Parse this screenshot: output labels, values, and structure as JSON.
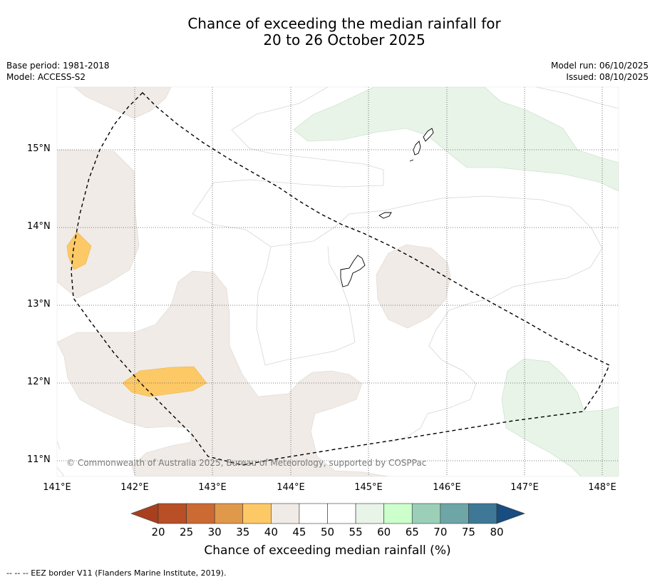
{
  "title": {
    "line1": "Chance of exceeding the median rainfall for",
    "line2": "20 to 26 October 2025"
  },
  "meta": {
    "base_period": "Base period: 1981-2018",
    "model": "Model: ACCESS-S2",
    "model_run": "Model run: 06/10/2025",
    "issued": "Issued: 08/10/2025"
  },
  "map": {
    "lat_ticks": [
      "15°N",
      "14°N",
      "13°N",
      "12°N",
      "11°N"
    ],
    "lon_ticks": [
      "141°E",
      "142°E",
      "143°E",
      "144°E",
      "145°E",
      "146°E",
      "147°E",
      "148°E"
    ],
    "copyright": "© Commonwealth of Australia 2025, Bureau of Meteorology, supported by COSPPac"
  },
  "colorbar": {
    "labels": [
      "20",
      "25",
      "30",
      "35",
      "40",
      "45",
      "50",
      "55",
      "60",
      "65",
      "70",
      "75",
      "80"
    ],
    "colors": [
      "#a8401f",
      "#b84f27",
      "#cc6a34",
      "#e0994a",
      "#fdc966",
      "#f0ebe6",
      "#ffffff",
      "#ffffff",
      "#e8f4e8",
      "#ccffcc",
      "#9bcfb8",
      "#6ea6a8",
      "#3f7897",
      "#174d80"
    ],
    "title": "Chance of exceeding median rainfall (%)"
  },
  "footnote": "-- -- -- EEZ border V11 (Flanders Marine Institute, 2019)."
}
